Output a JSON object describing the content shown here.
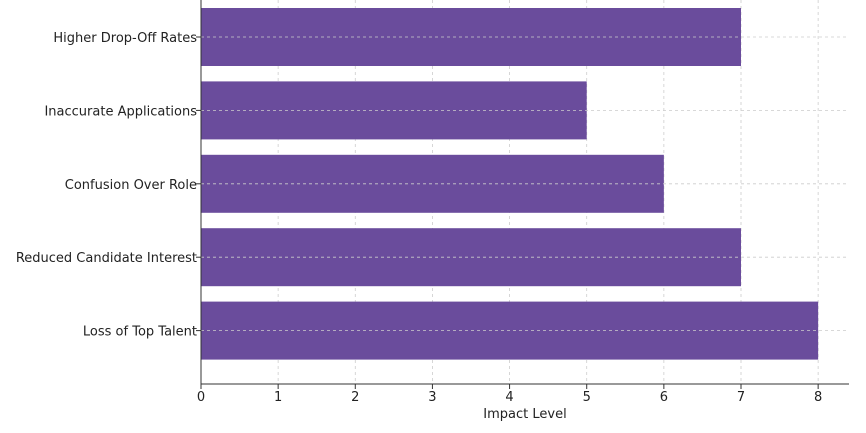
{
  "chart_data": {
    "type": "bar",
    "orientation": "horizontal",
    "categories": [
      "Loss of Top Talent",
      "Reduced Candidate Interest",
      "Confusion Over Role",
      "Inaccurate Applications",
      "Higher Drop-Off Rates"
    ],
    "values": [
      8,
      7,
      6,
      5,
      7
    ],
    "xlabel": "Impact Level",
    "ylabel": "",
    "xlim": [
      0,
      8.4
    ],
    "xticks": [
      "0",
      "1",
      "2",
      "3",
      "4",
      "5",
      "6",
      "7",
      "8"
    ],
    "grid": true,
    "bar_color": "#6a4c9c",
    "grid_color": "#cccccc"
  }
}
